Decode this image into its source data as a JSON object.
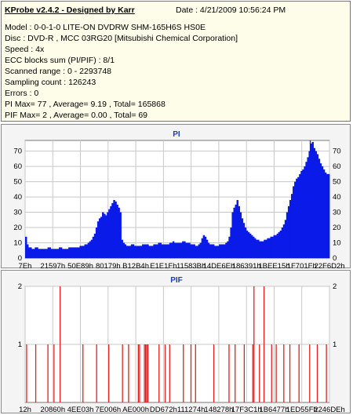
{
  "header": {
    "title": "KProbe v2.4.2 - Designed by Karr",
    "date": "Date : 4/21/2009 10:56:24 PM",
    "lines": [
      "Model : 0-0-1-0 LITE-ON DVDRW SHM-165H6S HS0E",
      "Disc : DVD-R , MCC 03RG20  [Mitsubishi Chemical Corporation]",
      "Speed : 4x",
      "ECC blocks sum (PI/PIF) : 8/1",
      "Scanned range : 0 - 2293748",
      "Sampling count : 126243",
      "Errors : 0",
      "PI Max= 77 , Average= 9.19 , Total= 165868",
      "PIF Max= 2 , Average= 0.00 , Total= 69"
    ]
  },
  "colors": {
    "header_bg": "#fdfde9",
    "plot_bg": "#ffffff",
    "pi_fill": "#0a1be8",
    "pif_bar": "#e02020",
    "grid": "#c8c8c8",
    "title": "#1a3fb0"
  },
  "chart_data": [
    {
      "type": "area",
      "title": "PI",
      "ylim": [
        0,
        77
      ],
      "yticks": [
        0,
        10,
        20,
        30,
        40,
        50,
        60,
        70
      ],
      "xlabels": [
        "7Eh",
        "21597h",
        "50E89h",
        "80179h",
        "B12B4h",
        "E1E1Fh",
        "11583Bh",
        "14DE6Eh",
        "186391h",
        "1BEE15h",
        "1F701Fh",
        "22F6D2h"
      ],
      "values": [
        14,
        9,
        7,
        7,
        6,
        6,
        7,
        7,
        6,
        6,
        6,
        6,
        6,
        6,
        7,
        7,
        6,
        6,
        6,
        6,
        6,
        7,
        7,
        6,
        6,
        6,
        6,
        7,
        7,
        7,
        7,
        7,
        7,
        7,
        8,
        8,
        8,
        9,
        9,
        10,
        11,
        12,
        14,
        16,
        20,
        24,
        26,
        27,
        30,
        29,
        28,
        30,
        32,
        34,
        36,
        38,
        37,
        35,
        33,
        30,
        12,
        10,
        9,
        8,
        8,
        8,
        9,
        9,
        8,
        8,
        8,
        8,
        8,
        9,
        9,
        9,
        9,
        8,
        8,
        8,
        9,
        9,
        9,
        10,
        10,
        9,
        9,
        9,
        9,
        9,
        10,
        10,
        11,
        10,
        10,
        10,
        10,
        10,
        11,
        11,
        10,
        10,
        10,
        9,
        9,
        9,
        8,
        8,
        9,
        10,
        13,
        15,
        14,
        12,
        10,
        9,
        9,
        9,
        8,
        8,
        8,
        9,
        9,
        9,
        9,
        10,
        11,
        14,
        20,
        30,
        33,
        35,
        38,
        34,
        30,
        26,
        23,
        20,
        18,
        17,
        16,
        15,
        14,
        13,
        12,
        12,
        11,
        11,
        11,
        12,
        12,
        13,
        13,
        14,
        14,
        15,
        15,
        16,
        17,
        18,
        20,
        22,
        25,
        30,
        34,
        38,
        42,
        47,
        50,
        52,
        53,
        55,
        57,
        58,
        60,
        63,
        66,
        70,
        75,
        76,
        72,
        70,
        68,
        65,
        62,
        60,
        58,
        56,
        55,
        55
      ],
      "max_label_value": 77,
      "max_index": 178
    },
    {
      "type": "bar",
      "title": "PIF",
      "ylim": [
        0,
        2
      ],
      "yticks": [
        1,
        2
      ],
      "xlabels": [
        "12h",
        "20860h",
        "4EE03h",
        "7E006h",
        "AE000h",
        "DD672h",
        "111274h",
        "148278h",
        "17F3C1h",
        "1B6477h",
        "1ED55Fh",
        "2246DEh"
      ],
      "bars": [
        {
          "pos": 0.005,
          "v": 1
        },
        {
          "pos": 0.035,
          "v": 1
        },
        {
          "pos": 0.075,
          "v": 1
        },
        {
          "pos": 0.095,
          "v": 1
        },
        {
          "pos": 0.115,
          "v": 2
        },
        {
          "pos": 0.19,
          "v": 1
        },
        {
          "pos": 0.235,
          "v": 1
        },
        {
          "pos": 0.275,
          "v": 1
        },
        {
          "pos": 0.32,
          "v": 1
        },
        {
          "pos": 0.34,
          "v": 1
        },
        {
          "pos": 0.372,
          "v": 1
        },
        {
          "pos": 0.376,
          "v": 1
        },
        {
          "pos": 0.392,
          "v": 1
        },
        {
          "pos": 0.396,
          "v": 1
        },
        {
          "pos": 0.4,
          "v": 1
        },
        {
          "pos": 0.404,
          "v": 1
        },
        {
          "pos": 0.44,
          "v": 1
        },
        {
          "pos": 0.46,
          "v": 1
        },
        {
          "pos": 0.475,
          "v": 1
        },
        {
          "pos": 0.52,
          "v": 1
        },
        {
          "pos": 0.545,
          "v": 1
        },
        {
          "pos": 0.56,
          "v": 1
        },
        {
          "pos": 0.62,
          "v": 1
        },
        {
          "pos": 0.67,
          "v": 1
        },
        {
          "pos": 0.69,
          "v": 1
        },
        {
          "pos": 0.72,
          "v": 1
        },
        {
          "pos": 0.748,
          "v": 1
        },
        {
          "pos": 0.752,
          "v": 2
        },
        {
          "pos": 0.77,
          "v": 1
        },
        {
          "pos": 0.785,
          "v": 2
        },
        {
          "pos": 0.81,
          "v": 1
        },
        {
          "pos": 0.825,
          "v": 1
        },
        {
          "pos": 0.85,
          "v": 1
        },
        {
          "pos": 0.87,
          "v": 1
        },
        {
          "pos": 0.9,
          "v": 1
        },
        {
          "pos": 0.935,
          "v": 1
        },
        {
          "pos": 0.96,
          "v": 1
        },
        {
          "pos": 0.99,
          "v": 1
        }
      ]
    }
  ]
}
